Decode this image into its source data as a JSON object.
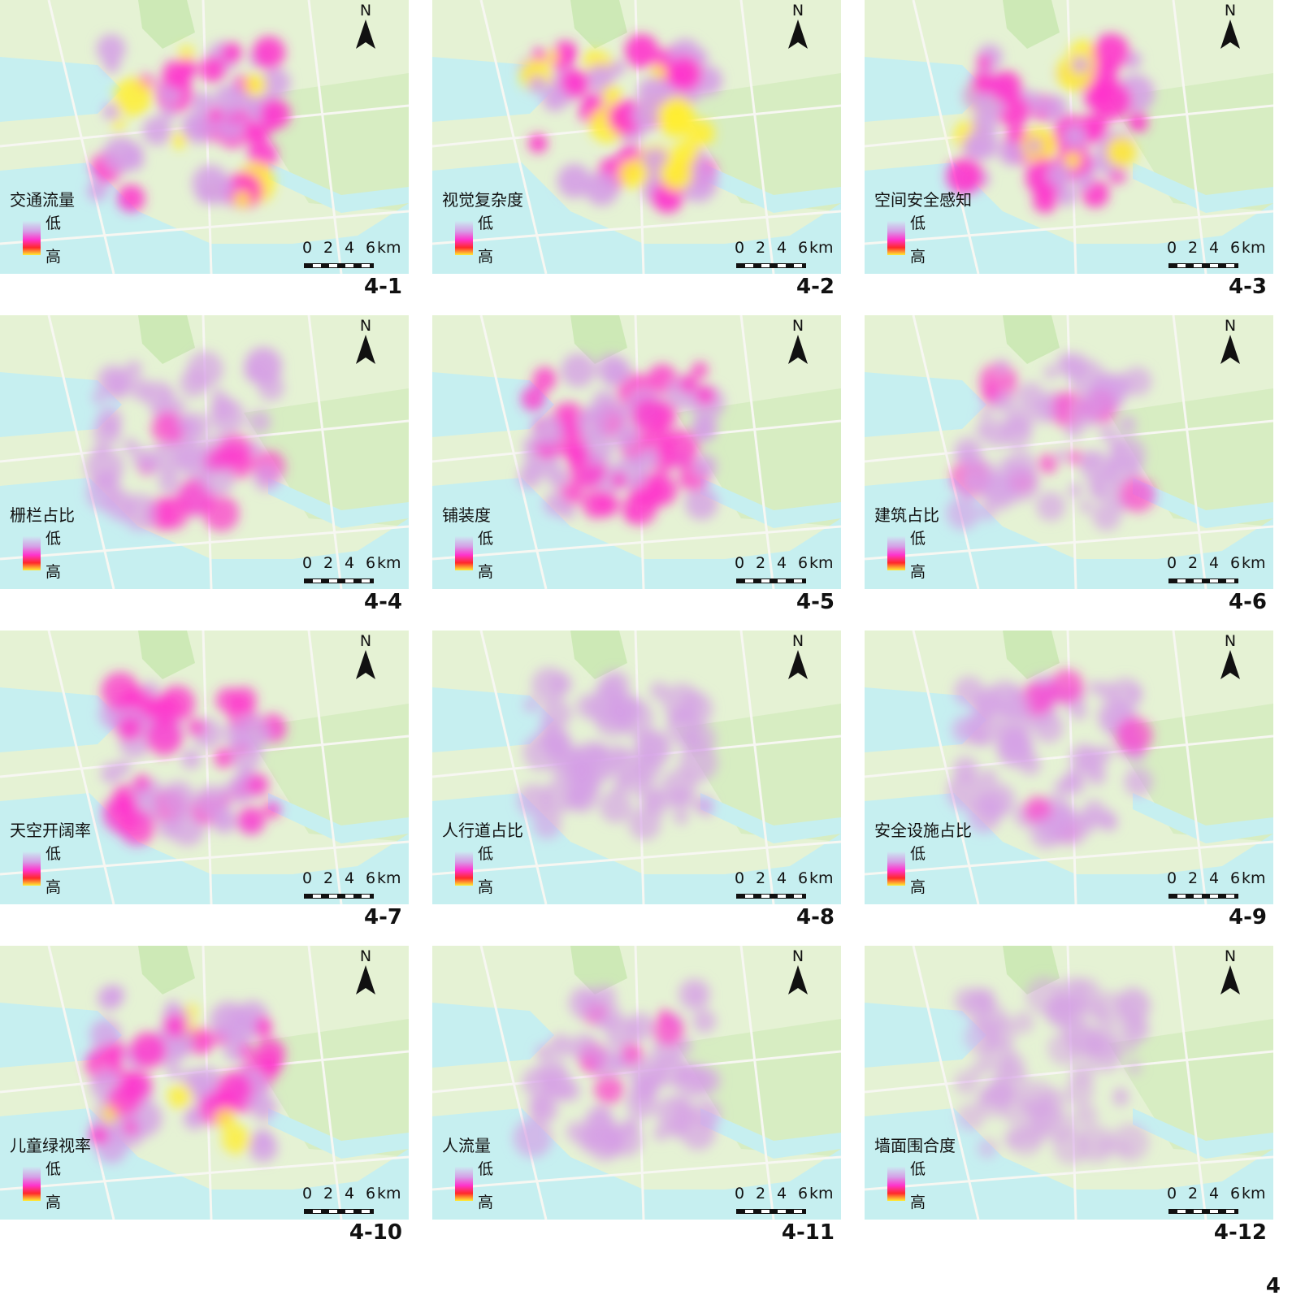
{
  "panels": [
    {
      "id": "4-1",
      "layer": "交通流量",
      "intensity": 0.9
    },
    {
      "id": "4-2",
      "layer": "视觉复杂度",
      "intensity": 1.0
    },
    {
      "id": "4-3",
      "layer": "空间安全感知",
      "intensity": 0.95
    },
    {
      "id": "4-4",
      "layer": "栅栏占比",
      "intensity": 0.6
    },
    {
      "id": "4-5",
      "layer": "铺装度",
      "intensity": 0.75
    },
    {
      "id": "4-6",
      "layer": "建筑占比",
      "intensity": 0.5
    },
    {
      "id": "4-7",
      "layer": "天空开阔率",
      "intensity": 0.7
    },
    {
      "id": "4-8",
      "layer": "人行道占比",
      "intensity": 0.45
    },
    {
      "id": "4-9",
      "layer": "安全设施占比",
      "intensity": 0.5
    },
    {
      "id": "4-10",
      "layer": "儿童绿视率",
      "intensity": 0.8
    },
    {
      "id": "4-11",
      "layer": "人流量",
      "intensity": 0.55
    },
    {
      "id": "4-12",
      "layer": "墙面围合度",
      "intensity": 0.2
    }
  ],
  "legend": {
    "low": "低",
    "high": "高"
  },
  "north_label": "N",
  "scale": {
    "ticks": [
      "0",
      "2",
      "4",
      "6"
    ],
    "unit": "km"
  },
  "figure_label": "4",
  "colors": {
    "land": "#e5f2d4",
    "green": "#cde9b6",
    "water": "#c6eff0",
    "road": "#f7f7f2",
    "heat_low": "#d59fe6",
    "heat_mid": "#ff33cc",
    "heat_high": "#ffee33"
  }
}
